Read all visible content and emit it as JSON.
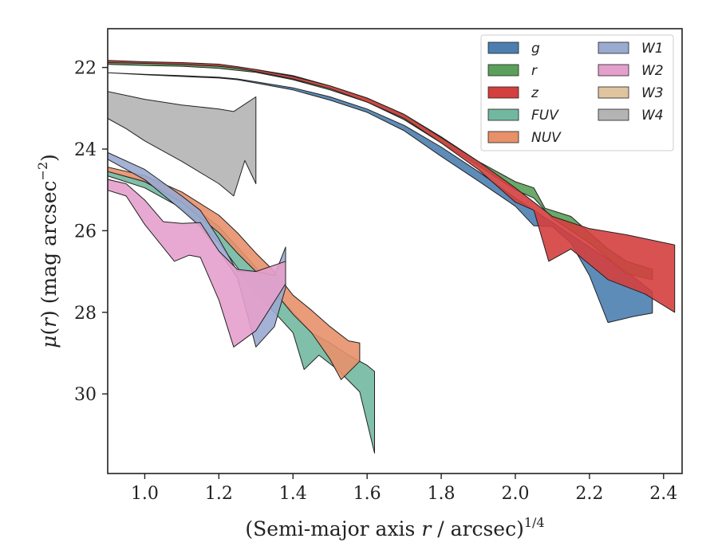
{
  "chart_data": {
    "type": "area",
    "title": "",
    "xlabel": "(Semi-major axis r / arcsec)",
    "xlabel_var": "r",
    "xlabel_exponent": "1/4",
    "ylabel": "μ(r) (mag arcsec",
    "ylabel_var": "r",
    "ylabel_exponent": "−2",
    "xlim": [
      0.9,
      2.45
    ],
    "ylim": [
      31.95,
      21.05
    ],
    "y_inverted": true,
    "xticks": [
      1.0,
      1.2,
      1.4,
      1.6,
      1.8,
      2.0,
      2.2,
      2.4
    ],
    "xtick_labels": [
      "1.0",
      "1.2",
      "1.4",
      "1.6",
      "1.8",
      "2.0",
      "2.2",
      "2.4"
    ],
    "yticks": [
      22,
      24,
      26,
      28,
      30
    ],
    "ytick_labels": [
      "22",
      "24",
      "26",
      "28",
      "30"
    ],
    "grid": false,
    "legend_position": "top-right",
    "legend_columns": 2,
    "series": [
      {
        "name": "g",
        "color": "#4c7fb0",
        "upper": [
          [
            0.88,
            22.12
          ],
          [
            1.0,
            22.17
          ],
          [
            1.1,
            22.2
          ],
          [
            1.2,
            22.24
          ],
          [
            1.25,
            22.28
          ],
          [
            1.3,
            22.35
          ],
          [
            1.4,
            22.5
          ],
          [
            1.5,
            22.72
          ],
          [
            1.6,
            23.02
          ],
          [
            1.7,
            23.42
          ],
          [
            1.8,
            23.95
          ],
          [
            1.9,
            24.55
          ],
          [
            2.0,
            25.2
          ],
          [
            2.1,
            25.8
          ],
          [
            2.2,
            26.4
          ],
          [
            2.3,
            27.0
          ],
          [
            2.37,
            27.5
          ]
        ],
        "lower": [
          [
            0.88,
            22.12
          ],
          [
            1.0,
            22.18
          ],
          [
            1.1,
            22.22
          ],
          [
            1.2,
            22.26
          ],
          [
            1.25,
            22.3
          ],
          [
            1.3,
            22.38
          ],
          [
            1.4,
            22.55
          ],
          [
            1.5,
            22.8
          ],
          [
            1.6,
            23.1
          ],
          [
            1.7,
            23.55
          ],
          [
            1.8,
            24.18
          ],
          [
            1.9,
            24.78
          ],
          [
            2.0,
            25.4
          ],
          [
            2.05,
            25.88
          ],
          [
            2.1,
            25.9
          ],
          [
            2.15,
            26.3
          ],
          [
            2.2,
            27.1
          ],
          [
            2.25,
            28.25
          ],
          [
            2.32,
            28.1
          ],
          [
            2.37,
            28.02
          ]
        ]
      },
      {
        "name": "r",
        "color": "#5aa05a",
        "upper": [
          [
            0.88,
            21.85
          ],
          [
            1.0,
            21.88
          ],
          [
            1.1,
            21.9
          ],
          [
            1.2,
            21.95
          ],
          [
            1.25,
            22.0
          ],
          [
            1.3,
            22.05
          ],
          [
            1.4,
            22.2
          ],
          [
            1.5,
            22.45
          ],
          [
            1.6,
            22.75
          ],
          [
            1.7,
            23.15
          ],
          [
            1.8,
            23.7
          ],
          [
            1.9,
            24.3
          ],
          [
            1.95,
            24.55
          ],
          [
            2.0,
            24.8
          ],
          [
            2.05,
            24.95
          ],
          [
            2.08,
            25.45
          ],
          [
            2.15,
            25.65
          ],
          [
            2.25,
            26.45
          ],
          [
            2.3,
            26.75
          ],
          [
            2.37,
            26.95
          ]
        ],
        "lower": [
          [
            0.88,
            21.92
          ],
          [
            1.0,
            21.95
          ],
          [
            1.1,
            21.97
          ],
          [
            1.2,
            22.02
          ],
          [
            1.25,
            22.07
          ],
          [
            1.3,
            22.12
          ],
          [
            1.4,
            22.3
          ],
          [
            1.5,
            22.55
          ],
          [
            1.6,
            22.85
          ],
          [
            1.7,
            23.28
          ],
          [
            1.8,
            23.85
          ],
          [
            1.9,
            24.4
          ],
          [
            2.0,
            25.0
          ],
          [
            2.05,
            25.2
          ],
          [
            2.1,
            25.7
          ],
          [
            2.2,
            26.3
          ],
          [
            2.3,
            27.05
          ],
          [
            2.37,
            27.2
          ]
        ]
      },
      {
        "name": "z",
        "color": "#d43f3f",
        "upper": [
          [
            0.88,
            21.82
          ],
          [
            1.0,
            21.86
          ],
          [
            1.1,
            21.88
          ],
          [
            1.2,
            21.92
          ],
          [
            1.25,
            21.98
          ],
          [
            1.3,
            22.05
          ],
          [
            1.4,
            22.22
          ],
          [
            1.5,
            22.45
          ],
          [
            1.6,
            22.75
          ],
          [
            1.7,
            23.15
          ],
          [
            1.8,
            23.72
          ],
          [
            1.9,
            24.3
          ],
          [
            2.0,
            24.95
          ],
          [
            2.1,
            25.65
          ],
          [
            2.2,
            25.95
          ],
          [
            2.3,
            26.1
          ],
          [
            2.43,
            26.35
          ]
        ],
        "lower": [
          [
            0.88,
            21.88
          ],
          [
            1.0,
            21.9
          ],
          [
            1.1,
            21.93
          ],
          [
            1.2,
            21.97
          ],
          [
            1.25,
            22.02
          ],
          [
            1.3,
            22.1
          ],
          [
            1.4,
            22.28
          ],
          [
            1.5,
            22.52
          ],
          [
            1.6,
            22.85
          ],
          [
            1.7,
            23.25
          ],
          [
            1.8,
            23.85
          ],
          [
            1.9,
            24.5
          ],
          [
            2.0,
            25.3
          ],
          [
            2.05,
            25.5
          ],
          [
            2.09,
            26.75
          ],
          [
            2.15,
            26.45
          ],
          [
            2.25,
            27.2
          ],
          [
            2.35,
            27.55
          ],
          [
            2.43,
            28.0
          ]
        ]
      },
      {
        "name": "FUV",
        "color": "#72b8a0",
        "upper": [
          [
            0.88,
            24.5
          ],
          [
            1.0,
            24.78
          ],
          [
            1.1,
            25.2
          ],
          [
            1.2,
            25.9
          ],
          [
            1.25,
            26.4
          ],
          [
            1.3,
            26.9
          ],
          [
            1.35,
            27.5
          ],
          [
            1.4,
            28.0
          ],
          [
            1.45,
            28.5
          ],
          [
            1.5,
            28.75
          ],
          [
            1.55,
            29.05
          ],
          [
            1.6,
            29.3
          ],
          [
            1.62,
            29.45
          ]
        ],
        "lower": [
          [
            0.88,
            24.6
          ],
          [
            1.0,
            24.95
          ],
          [
            1.1,
            25.45
          ],
          [
            1.2,
            26.3
          ],
          [
            1.25,
            26.9
          ],
          [
            1.3,
            27.55
          ],
          [
            1.35,
            28.0
          ],
          [
            1.4,
            28.5
          ],
          [
            1.43,
            29.4
          ],
          [
            1.47,
            29.05
          ],
          [
            1.52,
            29.4
          ],
          [
            1.58,
            29.95
          ],
          [
            1.62,
            31.45
          ]
        ]
      },
      {
        "name": "NUV",
        "color": "#e8906a",
        "upper": [
          [
            0.88,
            24.4
          ],
          [
            1.0,
            24.65
          ],
          [
            1.1,
            25.05
          ],
          [
            1.2,
            25.62
          ],
          [
            1.25,
            26.05
          ],
          [
            1.3,
            26.55
          ],
          [
            1.35,
            27.0
          ],
          [
            1.4,
            27.58
          ],
          [
            1.45,
            27.95
          ],
          [
            1.5,
            28.35
          ],
          [
            1.55,
            28.7
          ],
          [
            1.58,
            28.75
          ]
        ],
        "lower": [
          [
            0.88,
            24.5
          ],
          [
            1.0,
            24.8
          ],
          [
            1.1,
            25.3
          ],
          [
            1.2,
            26.05
          ],
          [
            1.25,
            26.55
          ],
          [
            1.3,
            27.0
          ],
          [
            1.35,
            27.5
          ],
          [
            1.4,
            28.05
          ],
          [
            1.45,
            28.5
          ],
          [
            1.5,
            29.15
          ],
          [
            1.53,
            29.65
          ],
          [
            1.58,
            29.2
          ]
        ]
      },
      {
        "name": "W1",
        "color": "#9aaad0",
        "upper": [
          [
            0.88,
            24.0
          ],
          [
            1.0,
            24.5
          ],
          [
            1.1,
            25.15
          ],
          [
            1.15,
            25.5
          ],
          [
            1.2,
            26.2
          ],
          [
            1.25,
            27.0
          ],
          [
            1.3,
            27.0
          ],
          [
            1.35,
            27.1
          ],
          [
            1.38,
            26.4
          ]
        ],
        "lower": [
          [
            0.88,
            24.15
          ],
          [
            1.0,
            24.75
          ],
          [
            1.1,
            25.5
          ],
          [
            1.15,
            25.9
          ],
          [
            1.2,
            26.5
          ],
          [
            1.25,
            27.15
          ],
          [
            1.3,
            28.85
          ],
          [
            1.35,
            28.35
          ],
          [
            1.38,
            27.4
          ]
        ]
      },
      {
        "name": "W2",
        "color": "#e4a0cc",
        "upper": [
          [
            0.88,
            24.7
          ],
          [
            0.95,
            24.85
          ],
          [
            1.0,
            25.25
          ],
          [
            1.05,
            25.78
          ],
          [
            1.1,
            25.82
          ],
          [
            1.15,
            25.8
          ],
          [
            1.2,
            26.5
          ],
          [
            1.25,
            26.95
          ],
          [
            1.3,
            27.0
          ],
          [
            1.38,
            26.75
          ]
        ],
        "lower": [
          [
            0.88,
            24.95
          ],
          [
            0.95,
            25.15
          ],
          [
            1.0,
            25.85
          ],
          [
            1.08,
            26.75
          ],
          [
            1.12,
            26.6
          ],
          [
            1.15,
            26.65
          ],
          [
            1.2,
            27.7
          ],
          [
            1.24,
            28.85
          ],
          [
            1.3,
            28.45
          ],
          [
            1.38,
            27.3
          ]
        ]
      },
      {
        "name": "W3",
        "color": "#e0c4a0",
        "upper": [],
        "lower": []
      },
      {
        "name": "W4",
        "color": "#b4b4b4",
        "upper": [
          [
            0.88,
            22.55
          ],
          [
            1.0,
            22.78
          ],
          [
            1.1,
            22.92
          ],
          [
            1.2,
            23.02
          ],
          [
            1.24,
            23.08
          ],
          [
            1.3,
            22.72
          ]
        ],
        "lower": [
          [
            0.88,
            23.15
          ],
          [
            0.95,
            23.5
          ],
          [
            1.0,
            23.8
          ],
          [
            1.1,
            24.3
          ],
          [
            1.2,
            24.85
          ],
          [
            1.24,
            25.15
          ],
          [
            1.27,
            24.28
          ],
          [
            1.3,
            24.85
          ]
        ]
      }
    ]
  }
}
